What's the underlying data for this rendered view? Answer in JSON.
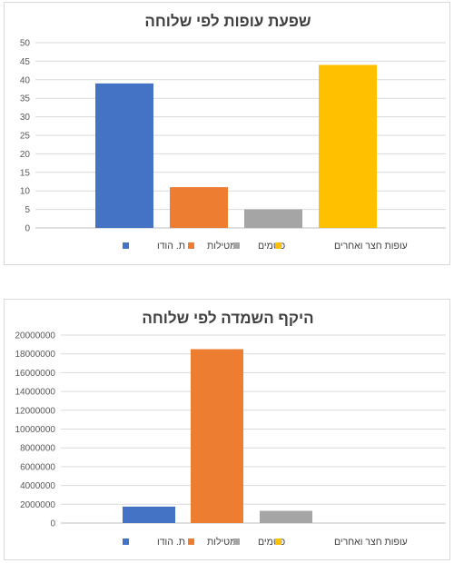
{
  "chart_data": [
    {
      "type": "bar",
      "title": "שפעת עופות לפי שלוחה",
      "categories": [
        "ת. הודו",
        "מטילות",
        "פטמים",
        "עופות חצר ואחרים"
      ],
      "values": [
        39,
        11,
        5,
        44
      ],
      "colors": [
        "#4472C4",
        "#ED7D31",
        "#A5A5A5",
        "#FFC000"
      ],
      "ylim": [
        0,
        50
      ],
      "yticks": [
        0,
        5,
        10,
        15,
        20,
        25,
        30,
        35,
        40,
        45,
        50
      ],
      "grid": true,
      "legend": "bottom"
    },
    {
      "type": "bar",
      "title": "היקף השמדה לפי שלוחה",
      "categories": [
        "ת. הודו",
        "מטילות",
        "פטמים",
        "עופות חצר ואחרים"
      ],
      "values": [
        1750000,
        18500000,
        1300000,
        0
      ],
      "colors": [
        "#4472C4",
        "#ED7D31",
        "#A5A5A5",
        "#FFC000"
      ],
      "ylim": [
        0,
        20000000
      ],
      "yticks": [
        0,
        2000000,
        4000000,
        6000000,
        8000000,
        10000000,
        12000000,
        14000000,
        16000000,
        18000000,
        20000000
      ],
      "grid": true,
      "legend": "bottom"
    }
  ]
}
